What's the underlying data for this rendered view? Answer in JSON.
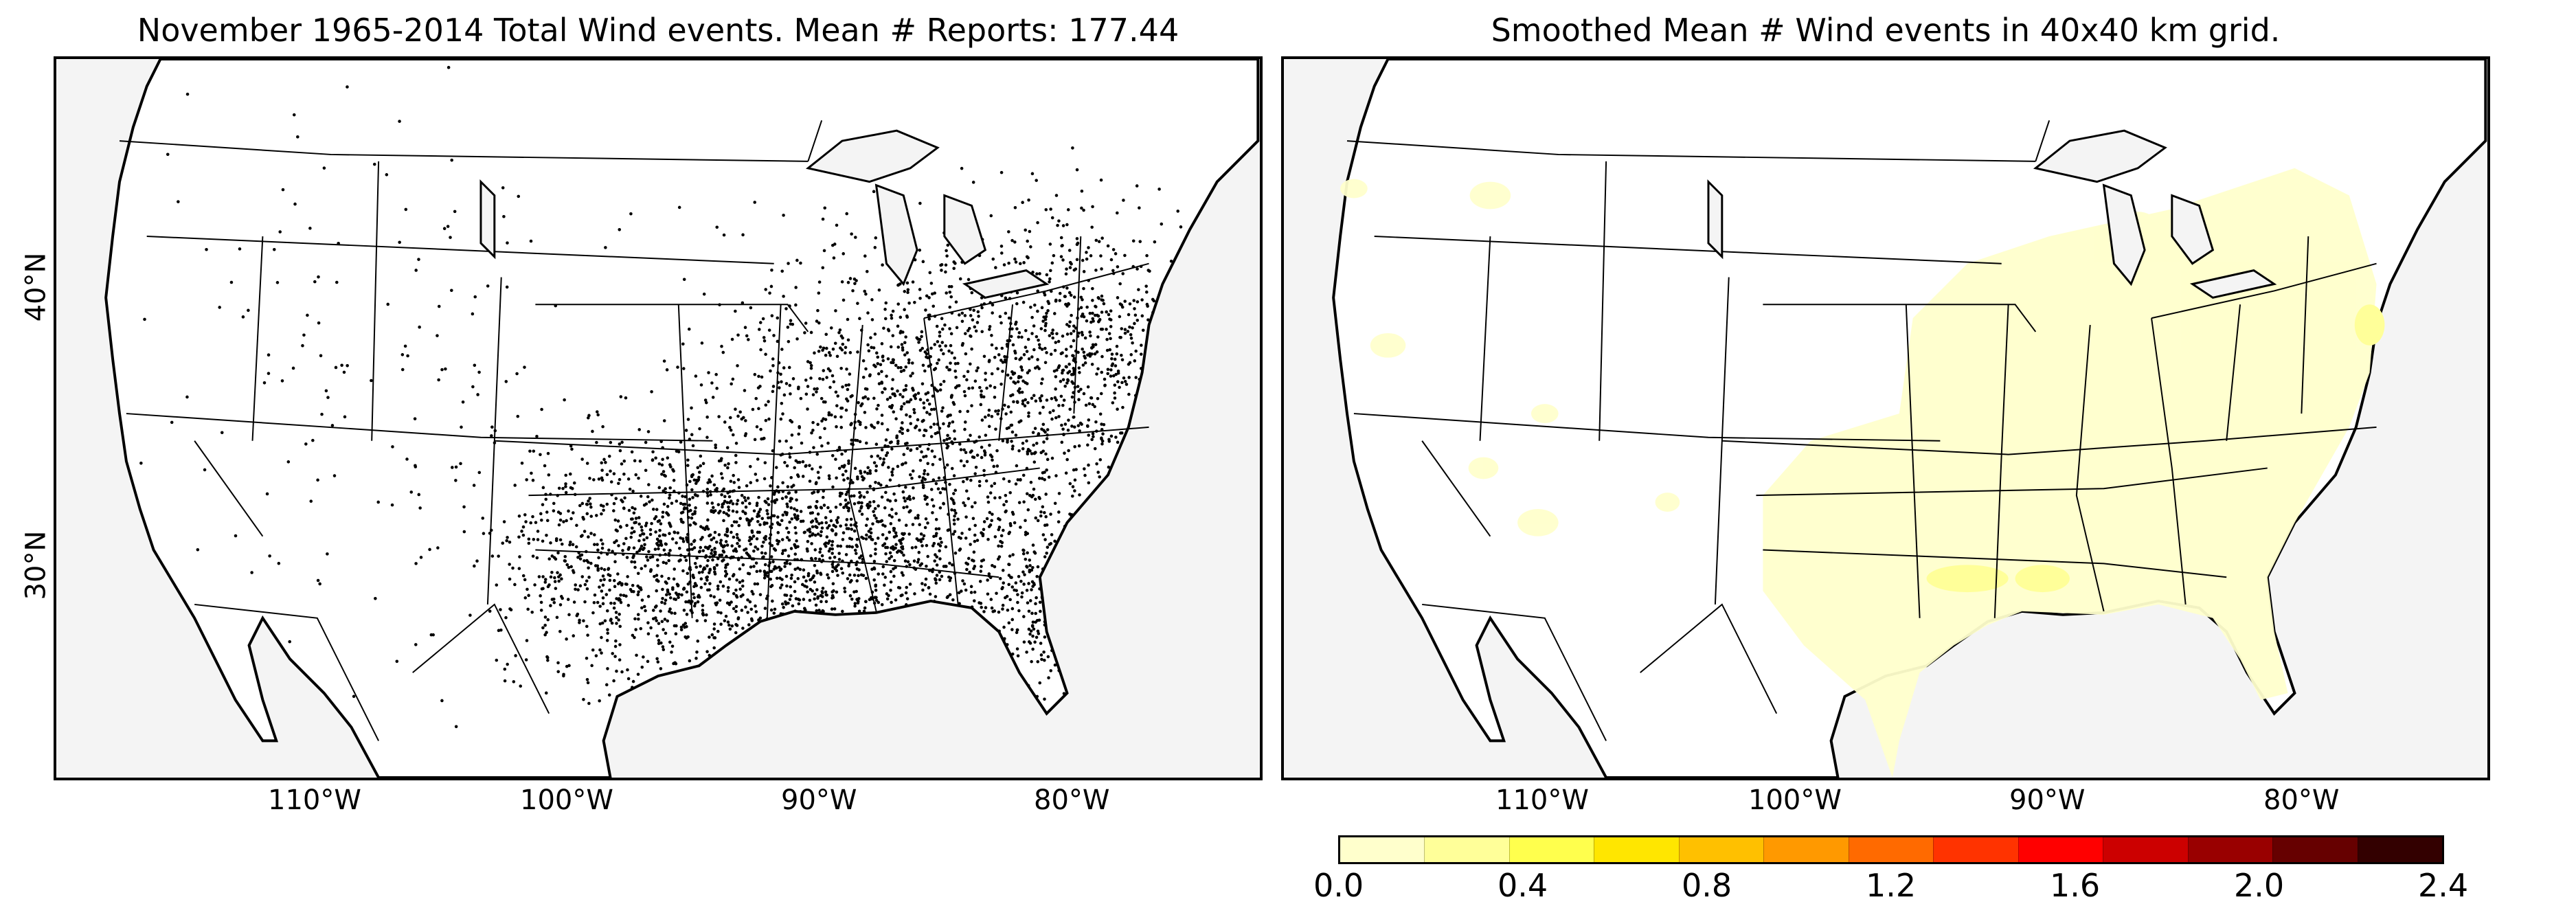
{
  "left_panel": {
    "title": "November 1965-2014 Total Wind events. Mean # Reports: 177.44",
    "lat_labels": [
      "40°N",
      "30°N"
    ],
    "lon_labels": [
      "110°W",
      "100°W",
      "90°W",
      "80°W"
    ]
  },
  "right_panel": {
    "title": "Smoothed Mean # Wind events in 40x40 km grid.",
    "lon_labels": [
      "110°W",
      "100°W",
      "90°W",
      "80°W"
    ]
  },
  "colorbar": {
    "colors": [
      "#ffffcc",
      "#ffff99",
      "#ffff4d",
      "#ffe600",
      "#ffc000",
      "#ff9900",
      "#ff6a00",
      "#ff3300",
      "#ff0000",
      "#cc0000",
      "#990000",
      "#660000",
      "#330000"
    ],
    "tick_labels": [
      "0.0",
      "0.4",
      "0.8",
      "1.2",
      "1.6",
      "2.0",
      "2.4"
    ]
  },
  "colors": {
    "ocean": "#f4f4f4",
    "land": "#ffffff",
    "dots": "#000000",
    "smoothed_fill": "#ffffcc"
  }
}
